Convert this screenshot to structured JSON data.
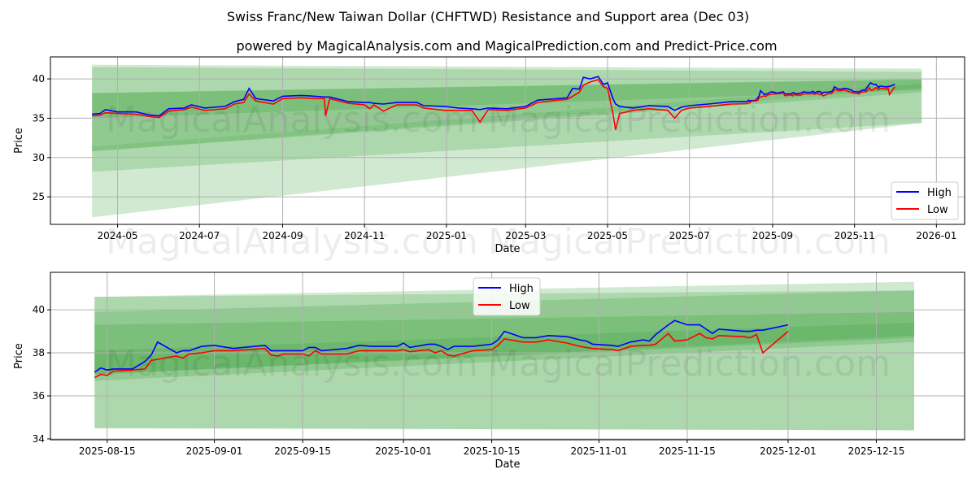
{
  "title": "Swiss Franc/New Taiwan Dollar (CHFTWD) Resistance and Support area (Dec 03)",
  "subtitle": "powered by MagicalAnalysis.com and MagicalPrediction.com and Predict-Price.com",
  "watermarks": [
    "MagicalAnalysis.com",
    "MagicalPrediction.com"
  ],
  "colors": {
    "high": "#0000ff",
    "low": "#ff0000",
    "band": "#2e9a2e",
    "grid": "#b0b0b0"
  },
  "chart_data": [
    {
      "type": "line",
      "xlabel": "Date",
      "ylabel": "Price",
      "xlim": [
        "2024-03-12",
        "2026-01-22"
      ],
      "ylim": [
        21.5,
        42.8
      ],
      "yticks": [
        25,
        30,
        35,
        40
      ],
      "xticks": [
        "2024-05",
        "2024-07",
        "2024-09",
        "2024-11",
        "2025-01",
        "2025-03",
        "2025-05",
        "2025-07",
        "2025-09",
        "2025-11",
        "2026-01"
      ],
      "grid": true,
      "legend": {
        "placement": "lower-right",
        "entries": [
          "High",
          "Low"
        ]
      },
      "bands": [
        {
          "start": "2024-04-12",
          "end": "2025-12-21",
          "start_range": [
            41.8,
            22.4
          ],
          "end_range": [
            41.3,
            34.4
          ],
          "opacity": 0.22
        },
        {
          "start": "2024-04-12",
          "end": "2025-12-21",
          "start_range": [
            41.5,
            28.2
          ],
          "end_range": [
            40.9,
            34.4
          ],
          "opacity": 0.22
        },
        {
          "start": "2024-04-12",
          "end": "2025-12-21",
          "start_range": [
            38.2,
            30.8
          ],
          "end_range": [
            40.0,
            38.3
          ],
          "opacity": 0.22
        },
        {
          "start": "2024-04-12",
          "end": "2025-12-21",
          "start_range": [
            38.2,
            35.0
          ],
          "end_range": [
            39.9,
            38.6
          ],
          "opacity": 0.22
        },
        {
          "start": "2024-04-12",
          "end": "2025-12-21",
          "start_range": [
            31.4,
            30.8
          ],
          "end_range": [
            39.4,
            38.8
          ],
          "opacity": 0.15
        }
      ],
      "series_hist": [
        [
          "2024-04-12",
          35.5,
          35.3
        ],
        [
          "2024-04-18",
          35.6,
          35.4
        ],
        [
          "2024-04-22",
          36.1,
          35.7
        ],
        [
          "2024-05-01",
          35.8,
          35.6
        ],
        [
          "2024-05-15",
          35.8,
          35.5
        ],
        [
          "2024-05-25",
          35.4,
          35.2
        ],
        [
          "2024-06-01",
          35.3,
          35.1
        ],
        [
          "2024-06-08",
          36.2,
          35.9
        ],
        [
          "2024-06-20",
          36.3,
          36.1
        ],
        [
          "2024-06-25",
          36.7,
          36.4
        ],
        [
          "2024-07-05",
          36.3,
          36.0
        ],
        [
          "2024-07-20",
          36.5,
          36.2
        ],
        [
          "2024-07-27",
          37.1,
          36.8
        ],
        [
          "2024-08-03",
          37.4,
          37.0
        ],
        [
          "2024-08-07",
          38.8,
          38.1
        ],
        [
          "2024-08-12",
          37.5,
          37.2
        ],
        [
          "2024-08-25",
          37.2,
          36.8
        ],
        [
          "2024-09-01",
          37.8,
          37.5
        ],
        [
          "2024-09-15",
          37.9,
          37.6
        ],
        [
          "2024-09-25",
          37.8,
          37.5
        ],
        [
          "2024-10-02",
          37.7,
          37.5
        ],
        [
          "2024-10-03",
          37.7,
          35.3
        ],
        [
          "2024-10-06",
          37.7,
          37.5
        ],
        [
          "2024-10-20",
          37.1,
          36.9
        ],
        [
          "2024-11-01",
          37.0,
          36.7
        ],
        [
          "2024-11-05",
          37.0,
          36.2
        ],
        [
          "2024-11-08",
          36.9,
          36.7
        ],
        [
          "2024-11-15",
          36.8,
          35.9
        ],
        [
          "2024-11-25",
          37.0,
          36.7
        ],
        [
          "2024-12-10",
          37.0,
          36.7
        ],
        [
          "2024-12-15",
          36.6,
          36.3
        ],
        [
          "2024-12-31",
          36.5,
          36.0
        ],
        [
          "2025-01-10",
          36.3,
          36.0
        ],
        [
          "2025-01-20",
          36.2,
          36.0
        ],
        [
          "2025-01-26",
          36.1,
          34.5
        ],
        [
          "2025-02-01",
          36.3,
          36.1
        ],
        [
          "2025-02-15",
          36.2,
          36.0
        ],
        [
          "2025-03-01",
          36.5,
          36.3
        ],
        [
          "2025-03-10",
          37.3,
          37.0
        ],
        [
          "2025-03-25",
          37.5,
          37.3
        ],
        [
          "2025-04-01",
          37.6,
          37.4
        ],
        [
          "2025-04-05",
          38.8,
          37.8
        ],
        [
          "2025-04-10",
          38.7,
          38.3
        ],
        [
          "2025-04-13",
          40.2,
          39.2
        ],
        [
          "2025-04-18",
          40.0,
          39.6
        ],
        [
          "2025-04-24",
          40.3,
          39.9
        ],
        [
          "2025-04-28",
          39.3,
          39.0
        ],
        [
          "2025-05-01",
          39.5,
          38.8
        ],
        [
          "2025-05-05",
          37.5,
          35.6
        ],
        [
          "2025-05-07",
          36.8,
          33.5
        ],
        [
          "2025-05-10",
          36.5,
          35.6
        ],
        [
          "2025-05-20",
          36.3,
          36.0
        ],
        [
          "2025-06-01",
          36.6,
          36.2
        ],
        [
          "2025-06-15",
          36.5,
          36.0
        ],
        [
          "2025-06-20",
          36.0,
          35.0
        ],
        [
          "2025-06-25",
          36.4,
          36.0
        ],
        [
          "2025-07-01",
          36.6,
          36.3
        ],
        [
          "2025-07-15",
          36.8,
          36.5
        ],
        [
          "2025-08-01",
          37.1,
          36.8
        ]
      ]
    },
    {
      "type": "line",
      "xlabel": "Date",
      "ylabel": "Price",
      "xlim": [
        "2025-08-06",
        "2025-12-29"
      ],
      "ylim": [
        33.96,
        41.74
      ],
      "yticks": [
        34,
        36,
        38,
        40
      ],
      "xticks": [
        "2025-08-15",
        "2025-09-01",
        "2025-09-15",
        "2025-10-01",
        "2025-10-15",
        "2025-11-01",
        "2025-11-15",
        "2025-12-01",
        "2025-12-15"
      ],
      "grid": true,
      "legend": {
        "placement": "upper-center",
        "entries": [
          "High",
          "Low"
        ]
      },
      "bands": [
        {
          "start": "2025-08-13",
          "end": "2025-12-21",
          "start_range": [
            40.6,
            34.5
          ],
          "end_range": [
            41.3,
            34.4
          ],
          "opacity": 0.22
        },
        {
          "start": "2025-08-13",
          "end": "2025-12-21",
          "start_range": [
            40.6,
            34.5
          ],
          "end_range": [
            40.9,
            34.4
          ],
          "opacity": 0.22
        },
        {
          "start": "2025-08-13",
          "end": "2025-12-21",
          "start_range": [
            39.9,
            36.7
          ],
          "end_range": [
            40.9,
            38.5
          ],
          "opacity": 0.22
        },
        {
          "start": "2025-08-13",
          "end": "2025-12-21",
          "start_range": [
            39.3,
            37.0
          ],
          "end_range": [
            39.9,
            38.7
          ],
          "opacity": 0.22
        },
        {
          "start": "2025-08-13",
          "end": "2025-12-21",
          "start_range": [
            38.1,
            37.0
          ],
          "end_range": [
            39.4,
            38.8
          ],
          "opacity": 0.2
        }
      ],
      "series": [
        [
          "2025-08-13",
          37.1,
          36.85
        ],
        [
          "2025-08-14",
          37.3,
          37.0
        ],
        [
          "2025-08-15",
          37.2,
          36.95
        ],
        [
          "2025-08-16",
          37.25,
          37.15
        ],
        [
          "2025-08-19",
          37.25,
          37.2
        ],
        [
          "2025-08-21",
          37.6,
          37.25
        ],
        [
          "2025-08-22",
          37.9,
          37.65
        ],
        [
          "2025-08-23",
          38.5,
          37.7
        ],
        [
          "2025-08-26",
          38.0,
          37.85
        ],
        [
          "2025-08-27",
          38.1,
          37.75
        ],
        [
          "2025-08-28",
          38.1,
          37.95
        ],
        [
          "2025-08-30",
          38.3,
          38.0
        ],
        [
          "2025-09-01",
          38.35,
          38.1
        ],
        [
          "2025-09-04",
          38.2,
          38.1
        ],
        [
          "2025-09-09",
          38.35,
          38.2
        ],
        [
          "2025-09-10",
          38.1,
          37.9
        ],
        [
          "2025-09-11",
          38.1,
          37.85
        ],
        [
          "2025-09-12",
          38.1,
          37.95
        ],
        [
          "2025-09-15",
          38.1,
          37.95
        ],
        [
          "2025-09-16",
          38.25,
          37.85
        ],
        [
          "2025-09-17",
          38.25,
          38.1
        ],
        [
          "2025-09-18",
          38.1,
          37.95
        ],
        [
          "2025-09-22",
          38.2,
          37.95
        ],
        [
          "2025-09-24",
          38.35,
          38.1
        ],
        [
          "2025-09-26",
          38.3,
          38.1
        ],
        [
          "2025-09-30",
          38.3,
          38.1
        ],
        [
          "2025-10-01",
          38.45,
          38.15
        ],
        [
          "2025-10-02",
          38.25,
          38.05
        ],
        [
          "2025-10-05",
          38.4,
          38.15
        ],
        [
          "2025-10-06",
          38.4,
          38.0
        ],
        [
          "2025-10-07",
          38.3,
          38.1
        ],
        [
          "2025-10-08",
          38.15,
          37.9
        ],
        [
          "2025-10-09",
          38.3,
          37.85
        ],
        [
          "2025-10-12",
          38.3,
          38.1
        ],
        [
          "2025-10-15",
          38.4,
          38.15
        ],
        [
          "2025-10-16",
          38.6,
          38.35
        ],
        [
          "2025-10-17",
          39.0,
          38.65
        ],
        [
          "2025-10-20",
          38.7,
          38.5
        ],
        [
          "2025-10-22",
          38.7,
          38.5
        ],
        [
          "2025-10-24",
          38.8,
          38.6
        ],
        [
          "2025-10-27",
          38.75,
          38.45
        ],
        [
          "2025-10-29",
          38.6,
          38.3
        ],
        [
          "2025-10-30",
          38.55,
          38.25
        ],
        [
          "2025-10-31",
          38.4,
          38.2
        ],
        [
          "2025-11-03",
          38.35,
          38.15
        ],
        [
          "2025-11-04",
          38.3,
          38.1
        ],
        [
          "2025-11-06",
          38.5,
          38.3
        ],
        [
          "2025-11-08",
          38.6,
          38.35
        ],
        [
          "2025-11-09",
          38.55,
          38.35
        ],
        [
          "2025-11-10",
          38.85,
          38.4
        ],
        [
          "2025-11-12",
          39.3,
          38.9
        ],
        [
          "2025-11-13",
          39.5,
          38.55
        ],
        [
          "2025-11-15",
          39.3,
          38.6
        ],
        [
          "2025-11-17",
          39.3,
          38.9
        ],
        [
          "2025-11-18",
          39.1,
          38.7
        ],
        [
          "2025-11-19",
          38.9,
          38.65
        ],
        [
          "2025-11-20",
          39.1,
          38.8
        ],
        [
          "2025-11-24",
          39.0,
          38.75
        ],
        [
          "2025-11-25",
          39.0,
          38.7
        ],
        [
          "2025-11-26",
          39.05,
          38.85
        ],
        [
          "2025-11-27",
          39.05,
          38.0
        ],
        [
          "2025-12-01",
          39.3,
          39.0
        ]
      ]
    }
  ]
}
